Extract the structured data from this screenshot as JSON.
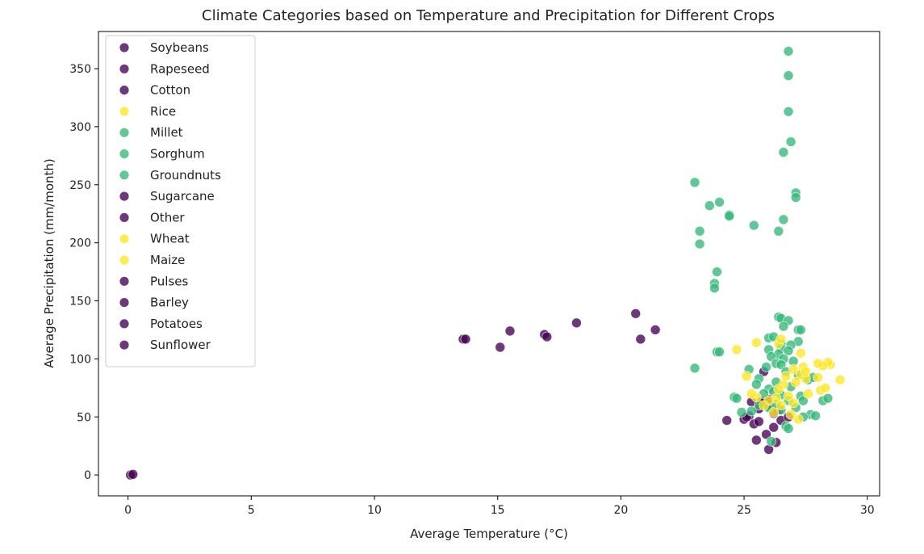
{
  "chart_data": {
    "type": "scatter",
    "title": "Climate Categories based on Temperature and Precipitation for Different Crops",
    "xlabel": "Average Temperature (°C)",
    "ylabel": "Average Precipitation (mm/month)",
    "xlim": [
      -1.2,
      30.5
    ],
    "ylim": [
      -18,
      382
    ],
    "xticks": [
      0,
      5,
      10,
      15,
      20,
      25,
      30
    ],
    "yticks": [
      0,
      50,
      100,
      150,
      200,
      250,
      300,
      350
    ],
    "grid": false,
    "legend_position": "top-left",
    "colors": {
      "purple": "#440154",
      "green": "#35b779",
      "yellow": "#fde725"
    },
    "legend": [
      {
        "label": "Soybeans",
        "color": "#440154"
      },
      {
        "label": "Rapeseed",
        "color": "#440154"
      },
      {
        "label": "Cotton",
        "color": "#440154"
      },
      {
        "label": "Rice",
        "color": "#fde725"
      },
      {
        "label": "Millet",
        "color": "#35b779"
      },
      {
        "label": "Sorghum",
        "color": "#35b779"
      },
      {
        "label": "Groundnuts",
        "color": "#35b779"
      },
      {
        "label": "Sugarcane",
        "color": "#440154"
      },
      {
        "label": "Other",
        "color": "#440154"
      },
      {
        "label": "Wheat",
        "color": "#fde725"
      },
      {
        "label": "Maize",
        "color": "#fde725"
      },
      {
        "label": "Pulses",
        "color": "#440154"
      },
      {
        "label": "Barley",
        "color": "#440154"
      },
      {
        "label": "Potatoes",
        "color": "#440154"
      },
      {
        "label": "Sunflower",
        "color": "#440154"
      }
    ],
    "series": [
      {
        "color": "#440154",
        "points": [
          [
            0.1,
            0
          ],
          [
            0.2,
            0.5
          ],
          [
            13.6,
            117
          ],
          [
            13.7,
            117
          ],
          [
            15.1,
            110
          ],
          [
            15.5,
            124
          ],
          [
            16.9,
            121
          ],
          [
            17.0,
            119
          ],
          [
            18.2,
            131
          ],
          [
            20.6,
            139
          ],
          [
            20.8,
            117
          ],
          [
            21.4,
            125
          ],
          [
            24.3,
            47
          ],
          [
            25.0,
            48
          ],
          [
            25.2,
            51
          ],
          [
            25.3,
            63
          ],
          [
            25.4,
            44
          ],
          [
            25.5,
            30
          ],
          [
            25.6,
            46
          ],
          [
            25.8,
            62
          ],
          [
            25.8,
            89
          ],
          [
            25.9,
            35
          ],
          [
            26.0,
            60
          ],
          [
            26.0,
            22
          ],
          [
            26.2,
            41
          ],
          [
            26.3,
            28
          ],
          [
            26.5,
            47
          ],
          [
            26.8,
            50
          ],
          [
            25.7,
            63
          ],
          [
            26.4,
            56
          ],
          [
            25.1,
            50
          ],
          [
            26.0,
            65
          ],
          [
            25.6,
            57
          ],
          [
            26.2,
            53
          ]
        ]
      },
      {
        "color": "#35b779",
        "points": [
          [
            26.8,
            365
          ],
          [
            26.8,
            344
          ],
          [
            26.8,
            313
          ],
          [
            26.9,
            287
          ],
          [
            26.6,
            278
          ],
          [
            27.1,
            243
          ],
          [
            27.1,
            239
          ],
          [
            23.0,
            252
          ],
          [
            24.0,
            235
          ],
          [
            23.6,
            232
          ],
          [
            24.4,
            224
          ],
          [
            24.4,
            223
          ],
          [
            26.6,
            220
          ],
          [
            25.4,
            215
          ],
          [
            26.4,
            210
          ],
          [
            23.2,
            210
          ],
          [
            23.2,
            199
          ],
          [
            23.9,
            175
          ],
          [
            23.8,
            165
          ],
          [
            23.8,
            161
          ],
          [
            23.0,
            92
          ],
          [
            23.9,
            106
          ],
          [
            24.0,
            106
          ],
          [
            26.4,
            136
          ],
          [
            26.5,
            135
          ],
          [
            26.8,
            133
          ],
          [
            26.6,
            128
          ],
          [
            27.2,
            125
          ],
          [
            27.3,
            125
          ],
          [
            26.0,
            118
          ],
          [
            26.2,
            119
          ],
          [
            26.5,
            113
          ],
          [
            27.2,
            115
          ],
          [
            26.9,
            112
          ],
          [
            26.5,
            109
          ],
          [
            26.0,
            108
          ],
          [
            26.8,
            107
          ],
          [
            26.4,
            104
          ],
          [
            26.1,
            102
          ],
          [
            26.6,
            100
          ],
          [
            27.0,
            98
          ],
          [
            26.3,
            96
          ],
          [
            26.5,
            95
          ],
          [
            25.9,
            93
          ],
          [
            25.2,
            91
          ],
          [
            26.7,
            89
          ],
          [
            27.2,
            86
          ],
          [
            25.6,
            83
          ],
          [
            26.3,
            80
          ],
          [
            25.5,
            78
          ],
          [
            26.9,
            76
          ],
          [
            27.6,
            82
          ],
          [
            27.8,
            84
          ],
          [
            26.0,
            74
          ],
          [
            26.2,
            72
          ],
          [
            25.8,
            70
          ],
          [
            24.6,
            67
          ],
          [
            24.7,
            66
          ],
          [
            26.5,
            69
          ],
          [
            27.3,
            68
          ],
          [
            26.8,
            64
          ],
          [
            27.4,
            64
          ],
          [
            28.2,
            64
          ],
          [
            28.4,
            66
          ],
          [
            25.6,
            60
          ],
          [
            26.0,
            58
          ],
          [
            26.5,
            56
          ],
          [
            25.3,
            55
          ],
          [
            24.9,
            54
          ],
          [
            27.7,
            52
          ],
          [
            27.9,
            51
          ],
          [
            27.4,
            50
          ],
          [
            26.7,
            42
          ],
          [
            26.8,
            40
          ],
          [
            26.1,
            29
          ],
          [
            26.3,
            61
          ],
          [
            27.1,
            58
          ]
        ]
      },
      {
        "color": "#fde725",
        "points": [
          [
            24.7,
            108
          ],
          [
            25.1,
            85
          ],
          [
            25.5,
            114
          ],
          [
            26.4,
            113
          ],
          [
            26.5,
            117
          ],
          [
            27.3,
            105
          ],
          [
            26.6,
            78
          ],
          [
            27.0,
            91
          ],
          [
            27.4,
            93
          ],
          [
            27.3,
            87
          ],
          [
            27.5,
            83
          ],
          [
            28.0,
            84
          ],
          [
            28.1,
            73
          ],
          [
            28.3,
            75
          ],
          [
            28.5,
            95
          ],
          [
            28.4,
            97
          ],
          [
            28.2,
            94
          ],
          [
            28.9,
            82
          ],
          [
            27.6,
            70
          ],
          [
            27.1,
            80
          ],
          [
            26.8,
            68
          ],
          [
            26.3,
            66
          ],
          [
            26.0,
            64
          ],
          [
            25.8,
            60
          ],
          [
            25.5,
            67
          ],
          [
            25.3,
            70
          ],
          [
            26.2,
            54
          ],
          [
            26.5,
            60
          ],
          [
            27.0,
            62
          ],
          [
            27.2,
            48
          ],
          [
            26.9,
            52
          ],
          [
            27.5,
            89
          ],
          [
            26.7,
            85
          ],
          [
            28.0,
            96
          ],
          [
            26.4,
            74
          ]
        ]
      }
    ]
  }
}
